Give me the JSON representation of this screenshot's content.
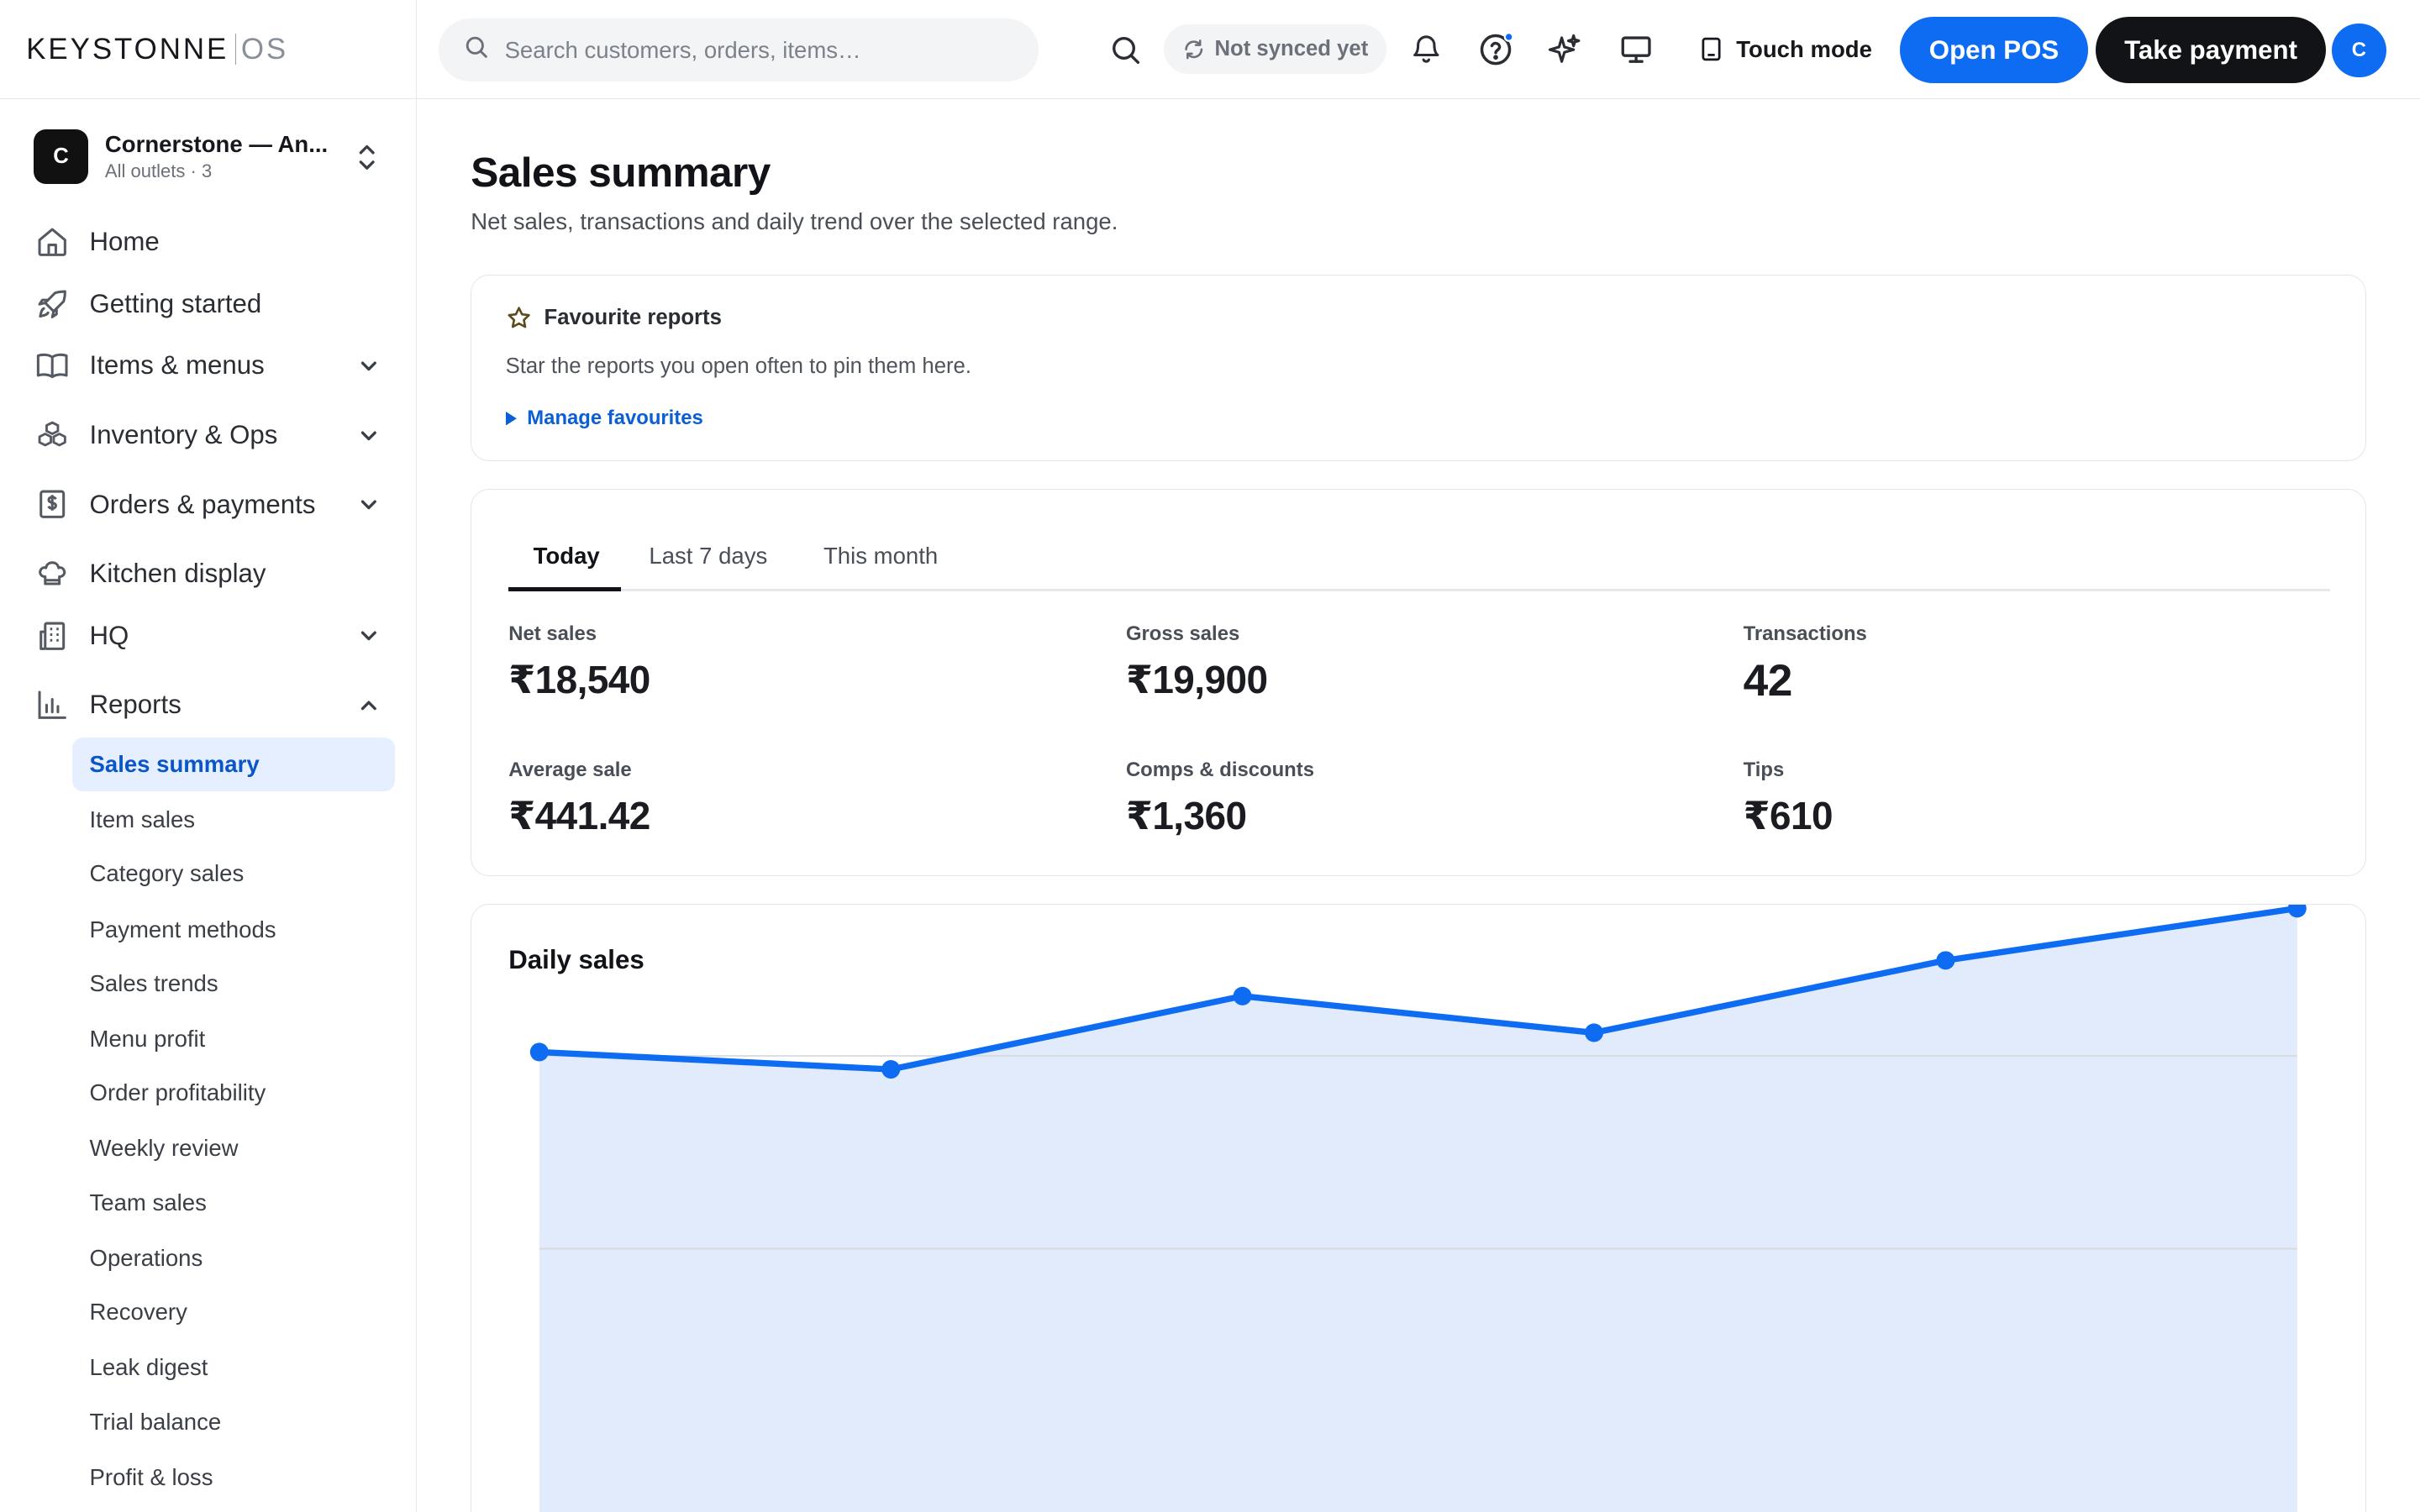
{
  "brand": {
    "name": "KEYSTONNE",
    "suffix": "OS"
  },
  "search": {
    "placeholder": "Search customers, orders, items…"
  },
  "topbar": {
    "sync_status": "Not synced yet",
    "touch_mode": "Touch mode",
    "open_pos": "Open POS",
    "take_payment": "Take payment",
    "avatar_initial": "C"
  },
  "org": {
    "logo_initial": "C",
    "name": "Cornerstone — An...",
    "sub": "All outlets · 3"
  },
  "sidebar": {
    "items": [
      {
        "label": "Home",
        "icon": "home-icon"
      },
      {
        "label": "Getting started",
        "icon": "rocket-icon"
      },
      {
        "label": "Items & menus",
        "icon": "book-icon",
        "expandable": true
      },
      {
        "label": "Inventory & Ops",
        "icon": "boxes-icon",
        "expandable": true
      },
      {
        "label": "Orders & payments",
        "icon": "receipt-icon",
        "expandable": true
      },
      {
        "label": "Kitchen display",
        "icon": "chef-hat-icon"
      },
      {
        "label": "HQ",
        "icon": "building-icon",
        "expandable": true
      },
      {
        "label": "Reports",
        "icon": "bar-chart-icon",
        "expanded": true
      }
    ],
    "report_items": [
      "Sales summary",
      "Item sales",
      "Category sales",
      "Payment methods",
      "Sales trends",
      "Menu profit",
      "Order profitability",
      "Weekly review",
      "Team sales",
      "Operations",
      "Recovery",
      "Leak digest",
      "Trial balance",
      "Profit & loss"
    ],
    "active_report": "Sales summary"
  },
  "page": {
    "title": "Sales summary",
    "subtitle": "Net sales, transactions and daily trend over the selected range."
  },
  "favourites": {
    "title": "Favourite reports",
    "description": "Star the reports you open often to pin them here.",
    "manage_link": "Manage favourites"
  },
  "range_tabs": {
    "tabs": [
      "Today",
      "Last 7 days",
      "This month"
    ],
    "active": "Today"
  },
  "metrics": [
    {
      "label": "Net sales",
      "value": "₹18,540"
    },
    {
      "label": "Gross sales",
      "value": "₹19,900"
    },
    {
      "label": "Transactions",
      "value": "42"
    },
    {
      "label": "Average sale",
      "value": "₹441.42"
    },
    {
      "label": "Comps & discounts",
      "value": "₹1,360"
    },
    {
      "label": "Tips",
      "value": "₹610"
    }
  ],
  "colors": {
    "accent": "#0d6cf2",
    "area_fill": "#e1ebfb",
    "dark_button": "#121316"
  },
  "chart_data": {
    "type": "area",
    "title": "Daily sales",
    "x": [
      1,
      2,
      3,
      4,
      5,
      6
    ],
    "series": [
      {
        "values": [
          2040,
          1860,
          2620,
          2240,
          2990,
          3530
        ]
      }
    ],
    "ylim": [
      0,
      4000
    ],
    "grid": true,
    "xlabel": "",
    "ylabel": ""
  }
}
